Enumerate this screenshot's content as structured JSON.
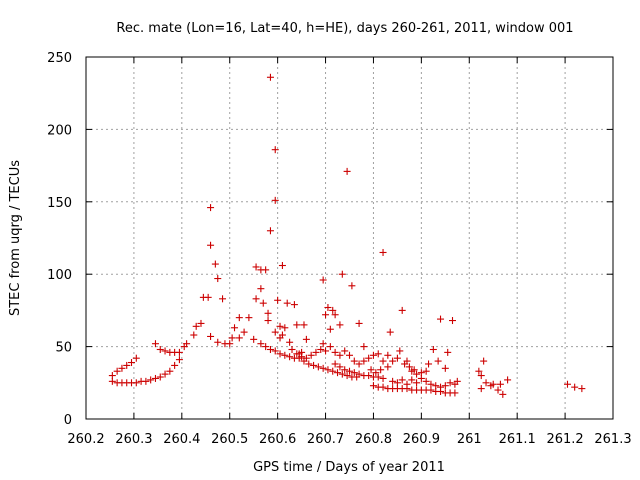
{
  "chart_data": {
    "type": "scatter",
    "title": "Rec. mate (Lon=16, Lat=40, h=HE), days 260-261, 2011, window 001",
    "xlabel": "GPS time / Days of year 2011",
    "ylabel": "STEC from uqrg / TECUs",
    "xlim": [
      260.2,
      261.3
    ],
    "ylim": [
      0,
      250
    ],
    "x_ticks": [
      "260.2",
      "260.3",
      "260.4",
      "260.5",
      "260.6",
      "260.7",
      "260.8",
      "260.9",
      "261",
      "261.1",
      "261.2",
      "261.3"
    ],
    "y_ticks": [
      "0",
      "50",
      "100",
      "150",
      "200",
      "250"
    ],
    "grid": true,
    "marker": "+",
    "color": "#cc0000",
    "series": [
      {
        "points": [
          [
            260.255,
            26
          ],
          [
            260.265,
            25
          ],
          [
            260.275,
            25
          ],
          [
            260.285,
            25
          ],
          [
            260.295,
            25
          ],
          [
            260.305,
            25
          ],
          [
            260.315,
            26
          ],
          [
            260.325,
            26
          ],
          [
            260.335,
            27
          ],
          [
            260.345,
            28
          ],
          [
            260.355,
            29
          ],
          [
            260.365,
            31
          ],
          [
            260.375,
            33
          ],
          [
            260.385,
            37
          ],
          [
            260.395,
            41
          ],
          [
            260.255,
            30
          ],
          [
            260.265,
            33
          ],
          [
            260.275,
            35
          ],
          [
            260.285,
            37
          ],
          [
            260.295,
            39
          ],
          [
            260.305,
            42
          ],
          [
            260.345,
            52
          ],
          [
            260.355,
            48
          ],
          [
            260.365,
            47
          ],
          [
            260.375,
            46
          ],
          [
            260.385,
            46
          ],
          [
            260.395,
            46
          ],
          [
            260.405,
            50
          ],
          [
            260.41,
            52
          ],
          [
            260.425,
            58
          ],
          [
            260.43,
            64
          ],
          [
            260.44,
            66
          ],
          [
            260.445,
            84
          ],
          [
            260.455,
            84
          ],
          [
            260.46,
            57
          ],
          [
            260.46,
            146
          ],
          [
            260.46,
            120
          ],
          [
            260.47,
            107
          ],
          [
            260.475,
            97
          ],
          [
            260.485,
            83
          ],
          [
            260.475,
            53
          ],
          [
            260.49,
            52
          ],
          [
            260.5,
            52
          ],
          [
            260.505,
            56
          ],
          [
            260.51,
            63
          ],
          [
            260.52,
            70
          ],
          [
            260.52,
            56
          ],
          [
            260.53,
            60
          ],
          [
            260.54,
            70
          ],
          [
            260.55,
            55
          ],
          [
            260.555,
            83
          ],
          [
            260.555,
            105
          ],
          [
            260.565,
            103
          ],
          [
            260.565,
            90
          ],
          [
            260.57,
            80
          ],
          [
            260.575,
            103
          ],
          [
            260.58,
            73
          ],
          [
            260.58,
            68
          ],
          [
            260.585,
            236
          ],
          [
            260.585,
            130
          ],
          [
            260.595,
            186
          ],
          [
            260.595,
            151
          ],
          [
            260.6,
            82
          ],
          [
            260.605,
            64
          ],
          [
            260.61,
            106
          ],
          [
            260.565,
            52
          ],
          [
            260.575,
            50
          ],
          [
            260.585,
            48
          ],
          [
            260.595,
            47
          ],
          [
            260.605,
            45
          ],
          [
            260.615,
            44
          ],
          [
            260.625,
            43
          ],
          [
            260.635,
            42
          ],
          [
            260.645,
            42
          ],
          [
            260.595,
            60
          ],
          [
            260.605,
            56
          ],
          [
            260.61,
            58
          ],
          [
            260.615,
            63
          ],
          [
            260.62,
            80
          ],
          [
            260.625,
            53
          ],
          [
            260.635,
            79
          ],
          [
            260.64,
            65
          ],
          [
            260.645,
            45
          ],
          [
            260.65,
            46
          ],
          [
            260.655,
            65
          ],
          [
            260.66,
            55
          ],
          [
            260.63,
            48
          ],
          [
            260.64,
            45
          ],
          [
            260.65,
            43
          ],
          [
            260.66,
            42
          ],
          [
            260.67,
            44
          ],
          [
            260.68,
            46
          ],
          [
            260.69,
            48
          ],
          [
            260.695,
            52
          ],
          [
            260.655,
            40
          ],
          [
            260.665,
            38
          ],
          [
            260.675,
            37
          ],
          [
            260.685,
            36
          ],
          [
            260.695,
            35
          ],
          [
            260.705,
            34
          ],
          [
            260.715,
            33
          ],
          [
            260.725,
            32
          ],
          [
            260.735,
            31
          ],
          [
            260.745,
            30
          ],
          [
            260.755,
            29
          ],
          [
            260.765,
            29
          ],
          [
            260.695,
            96
          ],
          [
            260.7,
            72
          ],
          [
            260.705,
            77
          ],
          [
            260.71,
            62
          ],
          [
            260.715,
            75
          ],
          [
            260.72,
            72
          ],
          [
            260.73,
            65
          ],
          [
            260.735,
            100
          ],
          [
            260.745,
            171
          ],
          [
            260.755,
            92
          ],
          [
            260.77,
            66
          ],
          [
            260.7,
            47
          ],
          [
            260.71,
            50
          ],
          [
            260.72,
            46
          ],
          [
            260.73,
            44
          ],
          [
            260.74,
            47
          ],
          [
            260.75,
            44
          ],
          [
            260.76,
            40
          ],
          [
            260.77,
            38
          ],
          [
            260.78,
            40
          ],
          [
            260.79,
            42
          ],
          [
            260.8,
            44
          ],
          [
            260.81,
            45
          ],
          [
            260.82,
            40
          ],
          [
            260.83,
            44
          ],
          [
            260.72,
            38
          ],
          [
            260.73,
            36
          ],
          [
            260.74,
            34
          ],
          [
            260.75,
            33
          ],
          [
            260.76,
            32
          ],
          [
            260.77,
            31
          ],
          [
            260.78,
            30
          ],
          [
            260.79,
            30
          ],
          [
            260.8,
            29
          ],
          [
            260.81,
            29
          ],
          [
            260.82,
            28
          ],
          [
            260.78,
            50
          ],
          [
            260.795,
            34
          ],
          [
            260.805,
            32
          ],
          [
            260.815,
            34
          ],
          [
            260.82,
            115
          ],
          [
            260.83,
            36
          ],
          [
            260.835,
            60
          ],
          [
            260.84,
            40
          ],
          [
            260.85,
            42
          ],
          [
            260.855,
            47
          ],
          [
            260.86,
            75
          ],
          [
            260.865,
            38
          ],
          [
            260.87,
            40
          ],
          [
            260.875,
            36
          ],
          [
            260.885,
            34
          ],
          [
            260.8,
            23
          ],
          [
            260.81,
            22
          ],
          [
            260.82,
            22
          ],
          [
            260.83,
            21
          ],
          [
            260.84,
            21
          ],
          [
            260.85,
            21
          ],
          [
            260.86,
            21
          ],
          [
            260.87,
            21
          ],
          [
            260.88,
            20
          ],
          [
            260.89,
            20
          ],
          [
            260.9,
            20
          ],
          [
            260.91,
            20
          ],
          [
            260.92,
            20
          ],
          [
            260.93,
            19
          ],
          [
            260.94,
            19
          ],
          [
            260.95,
            18
          ],
          [
            260.96,
            18
          ],
          [
            260.97,
            18
          ],
          [
            260.84,
            26
          ],
          [
            260.85,
            25
          ],
          [
            260.86,
            27
          ],
          [
            260.87,
            24
          ],
          [
            260.88,
            27
          ],
          [
            260.89,
            25
          ],
          [
            260.9,
            28
          ],
          [
            260.91,
            26
          ],
          [
            260.92,
            24
          ],
          [
            260.93,
            23
          ],
          [
            260.94,
            22
          ],
          [
            260.95,
            23
          ],
          [
            260.96,
            25
          ],
          [
            260.97,
            24
          ],
          [
            260.88,
            33
          ],
          [
            260.89,
            31
          ],
          [
            260.9,
            32
          ],
          [
            260.91,
            33
          ],
          [
            260.915,
            38
          ],
          [
            260.925,
            48
          ],
          [
            260.935,
            40
          ],
          [
            260.94,
            69
          ],
          [
            260.95,
            35
          ],
          [
            260.955,
            46
          ],
          [
            260.965,
            68
          ],
          [
            260.975,
            26
          ],
          [
            261.02,
            33
          ],
          [
            261.025,
            30
          ],
          [
            261.03,
            40
          ],
          [
            261.035,
            25
          ],
          [
            261.045,
            23
          ],
          [
            261.05,
            24
          ],
          [
            261.06,
            20
          ],
          [
            261.065,
            24
          ],
          [
            261.07,
            17
          ],
          [
            261.08,
            27
          ],
          [
            261.025,
            21
          ],
          [
            261.205,
            24
          ],
          [
            261.22,
            22
          ],
          [
            261.235,
            21
          ]
        ]
      }
    ]
  }
}
